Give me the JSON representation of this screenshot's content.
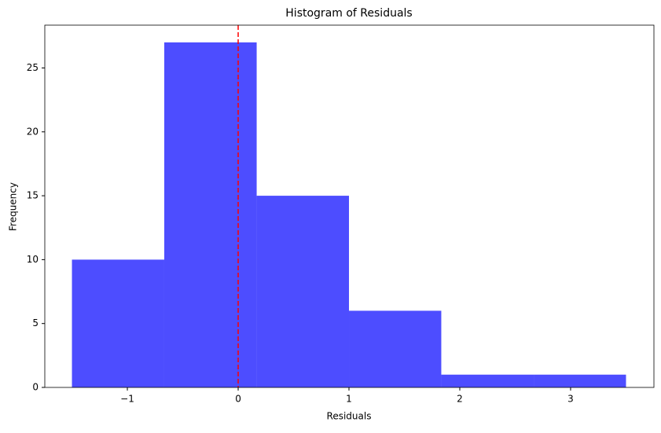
{
  "chart_data": {
    "type": "histogram",
    "title": "Histogram of Residuals",
    "x_label": "Residuals",
    "y_label": "Frequency",
    "bins": [
      -1.5,
      -0.667,
      0.167,
      1.0,
      1.833,
      2.667,
      3.5
    ],
    "counts": [
      10,
      27,
      15,
      6,
      1,
      1
    ],
    "color": "#4d4dff",
    "xlim": [
      -1.745,
      3.752
    ],
    "xticks": [
      {
        "value": -1,
        "label": "−1"
      },
      0,
      1,
      2,
      3
    ],
    "ylim": [
      0,
      28.35
    ],
    "yticks": [
      0,
      5,
      10,
      15,
      20,
      25
    ],
    "vline": 0,
    "vline_color": "#ff0000"
  }
}
